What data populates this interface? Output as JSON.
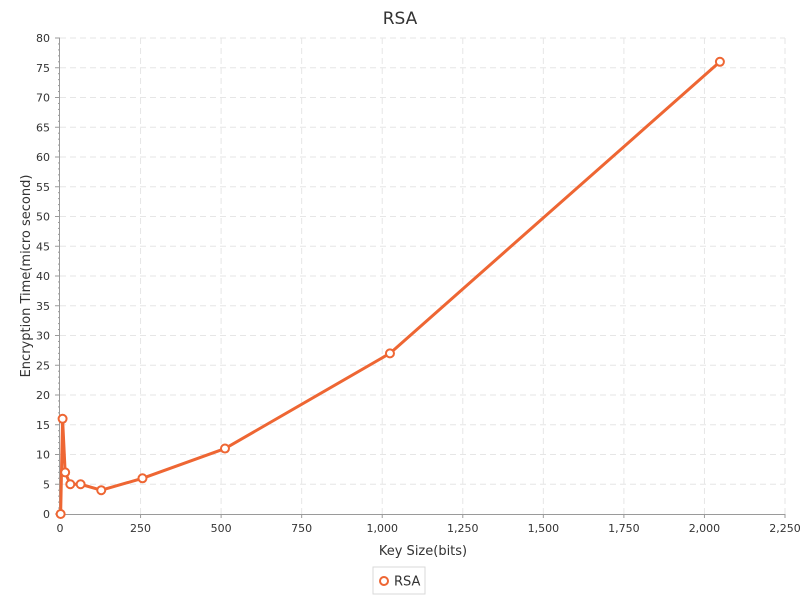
{
  "chart_data": {
    "type": "line",
    "title": "RSA",
    "xlabel": "Key Size(bits)",
    "ylabel": "Encryption Time(micro second)",
    "xlim": [
      0,
      2250
    ],
    "ylim": [
      0,
      80
    ],
    "x_ticks": [
      0,
      250,
      500,
      750,
      1000,
      1250,
      1500,
      1750,
      2000,
      2250
    ],
    "y_ticks": [
      0,
      5,
      10,
      15,
      20,
      25,
      30,
      35,
      40,
      45,
      50,
      55,
      60,
      65,
      70,
      75,
      80
    ],
    "grid": true,
    "legend_position": "bottom-center",
    "series": [
      {
        "name": "RSA",
        "color": "#ee6633",
        "x": [
          2,
          8,
          16,
          32,
          64,
          128,
          256,
          512,
          1024,
          2048
        ],
        "y": [
          0,
          16,
          7,
          5,
          5,
          4,
          6,
          11,
          27,
          76
        ]
      }
    ]
  }
}
